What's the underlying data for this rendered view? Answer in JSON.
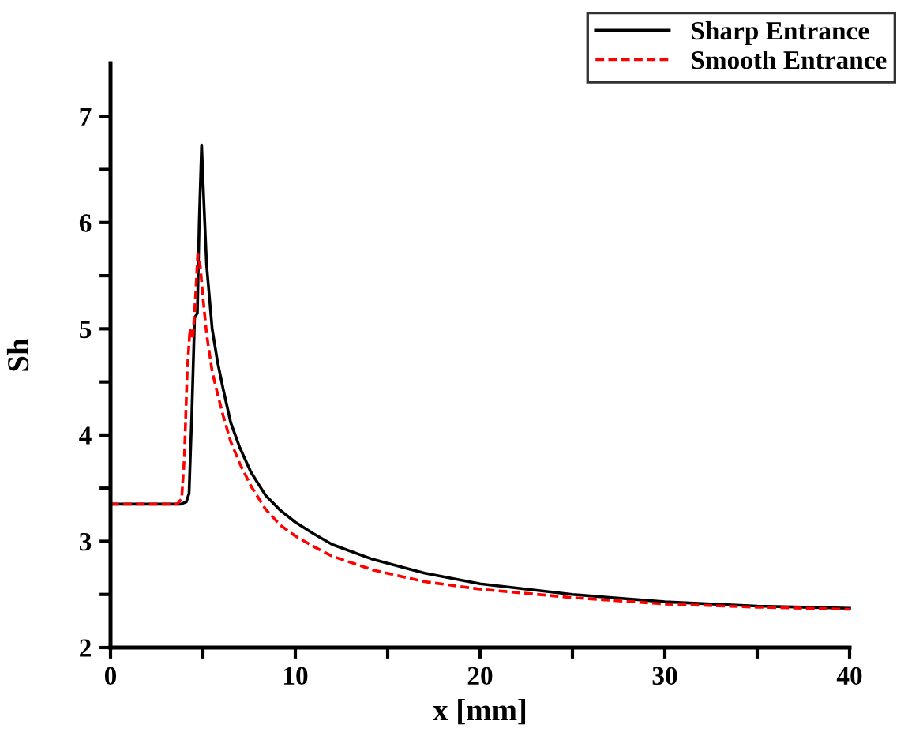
{
  "chart_data": {
    "type": "line",
    "xlabel": "x [mm]",
    "ylabel": "Sh",
    "xlim": [
      0,
      40
    ],
    "ylim": [
      2,
      7.5
    ],
    "xticks": [
      0,
      {
        "value": 5,
        "label": null
      },
      10,
      {
        "value": 15,
        "label": null
      },
      20,
      {
        "value": 25,
        "label": null
      },
      30,
      {
        "value": 35,
        "label": null
      },
      40
    ],
    "yticks": [
      2,
      {
        "value": 2.5,
        "label": null
      },
      3,
      {
        "value": 3.5,
        "label": null
      },
      4,
      {
        "value": 4.5,
        "label": null
      },
      5,
      {
        "value": 5.5,
        "label": null
      },
      6,
      {
        "value": 6.5,
        "label": null
      },
      7
    ],
    "legend": "top right",
    "grid": false,
    "series": [
      {
        "name": "Sharp Entrance",
        "color": "#000000",
        "line_style": "solid",
        "x": [
          0,
          2,
          3.8,
          4.1,
          4.25,
          4.4,
          4.55,
          4.7,
          4.8,
          4.93,
          5.05,
          5.2,
          5.5,
          5.8,
          6.1,
          6.5,
          7,
          7.6,
          8.4,
          9.2,
          10,
          11,
          12,
          14.2,
          17,
          20,
          25,
          30,
          35,
          40
        ],
        "values": [
          3.35,
          3.35,
          3.35,
          3.37,
          3.45,
          4.2,
          5.1,
          5.15,
          6.0,
          6.73,
          6.2,
          5.6,
          5.0,
          4.68,
          4.43,
          4.12,
          3.88,
          3.65,
          3.43,
          3.29,
          3.18,
          3.07,
          2.97,
          2.83,
          2.7,
          2.6,
          2.5,
          2.43,
          2.39,
          2.37
        ]
      },
      {
        "name": "Smooth Entrance",
        "color": "#ff0000",
        "line_style": "dashed",
        "x": [
          0,
          2,
          3.6,
          3.85,
          4.0,
          4.15,
          4.3,
          4.45,
          4.6,
          4.72,
          4.85,
          5.0,
          5.2,
          5.5,
          5.8,
          6.1,
          6.5,
          7,
          7.6,
          8.4,
          9.2,
          10,
          11,
          12,
          14.2,
          17,
          20,
          25,
          30,
          35,
          40
        ],
        "values": [
          3.35,
          3.35,
          3.35,
          3.4,
          3.8,
          4.6,
          5.0,
          4.9,
          5.3,
          5.7,
          5.6,
          5.3,
          4.95,
          4.6,
          4.38,
          4.18,
          3.94,
          3.73,
          3.52,
          3.3,
          3.15,
          3.05,
          2.95,
          2.86,
          2.73,
          2.62,
          2.55,
          2.47,
          2.41,
          2.38,
          2.36
        ]
      }
    ]
  }
}
